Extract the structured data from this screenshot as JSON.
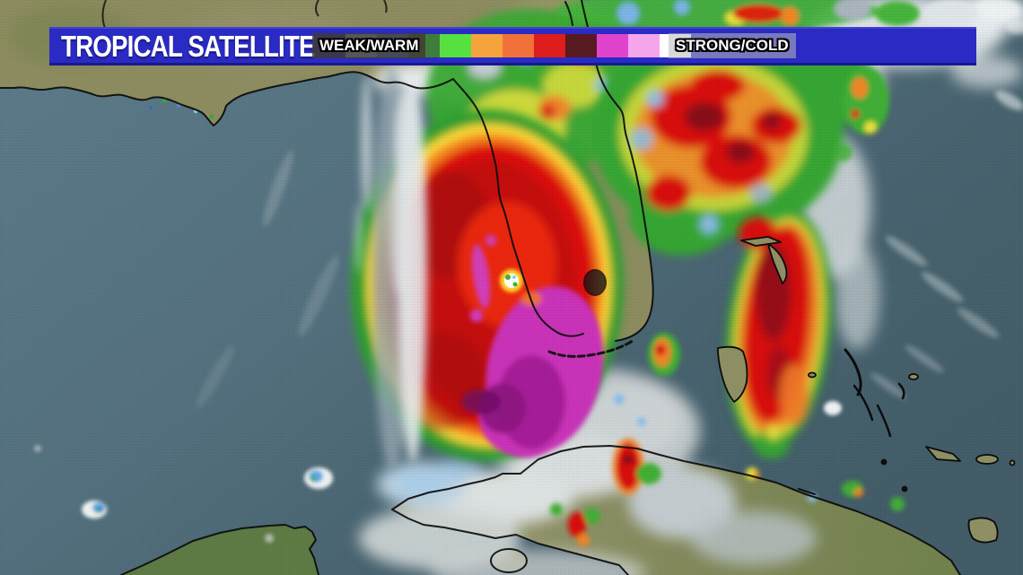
{
  "header": {
    "title": "TROPICAL SATELLITE",
    "bar_color": "#2a2ac4",
    "legend": {
      "weak_label": "WEAK/WARM",
      "strong_label": "STRONG/COLD",
      "colors": [
        "#a8d7f2",
        "#4d94e8",
        "#3e7d3a",
        "#57e140",
        "#f5a33c",
        "#f2713b",
        "#de1d1d",
        "#571a20",
        "#e044cc",
        "#f5a5ec",
        "#ffffff"
      ]
    }
  },
  "map": {
    "type": "infrared-satellite-enhancement",
    "water_color": "#54707e",
    "land_color": "#8d8c60",
    "coastline_color": "#0a0a0a",
    "hurricane_core_colors": {
      "red": "#c40b0b",
      "magenta": "#c930b8",
      "eye": "#ffffff"
    }
  }
}
